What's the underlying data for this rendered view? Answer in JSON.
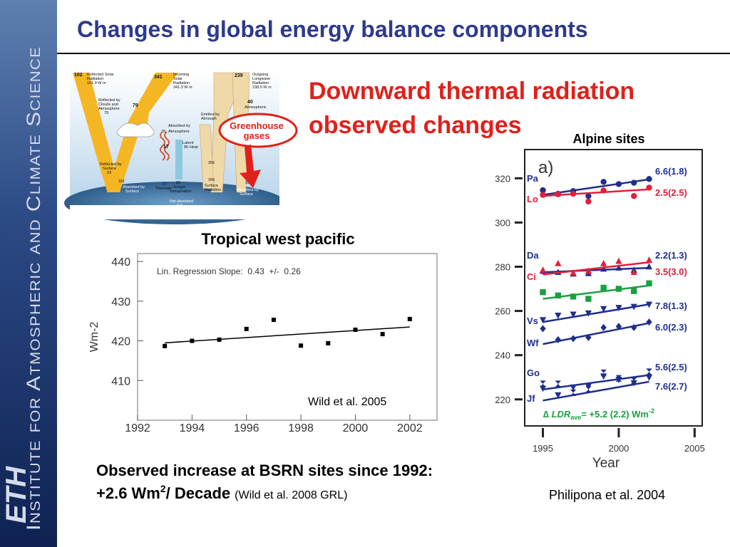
{
  "sidebar": {
    "institute": "Institute for Atmospheric and Climate Science",
    "logo": "ETH"
  },
  "title": "Changes in global energy balance components",
  "heading": [
    "Downward thermal radiation",
    "observed changes"
  ],
  "diagram": {
    "reflected_solar": [
      "102",
      "Reflected Solar",
      "Radiation",
      "101.9 W m"
    ],
    "incoming": [
      "341",
      "Incoming",
      "Solar",
      "Radiation",
      "341.3 W m"
    ],
    "outgoing": [
      "239",
      "Outgoing",
      "Longwave",
      "Radiation",
      "238.5 W m"
    ],
    "clouds": [
      "Reflected by",
      "Clouds and",
      "Atmosphere",
      "79"
    ],
    "n79": "79",
    "absorbed_atm": [
      "Absorbed by",
      "78",
      "Atmosphere"
    ],
    "emitted": [
      "Emitted by",
      "Atmosph"
    ],
    "window": [
      "40",
      "Atmospheric"
    ],
    "latent": [
      "Latent",
      "80",
      "Heat"
    ],
    "n17": "17",
    "refl_surface": [
      "Reflected by",
      "Surface",
      "23"
    ],
    "n161": "161",
    "thermals": [
      "17",
      "Thermals"
    ],
    "evapo": [
      "80",
      "Evapo-",
      "transpiration"
    ],
    "n356": "356",
    "surface_rad": [
      "396",
      "Surface",
      "Radiation"
    ],
    "n333": "333",
    "abs_surface_left": [
      "Absorbed by",
      "Surface"
    ],
    "abs_surface_right": [
      "Absorbed by",
      "Surface"
    ],
    "net": [
      "Net absorbed",
      "0.9",
      "W m"
    ],
    "callout": [
      "Greenhouse",
      "gases"
    ]
  },
  "summary": {
    "line1": "Observed increase at BSRN sites since 1992:",
    "line2": "+2.6 Wm",
    "sup": "2",
    "line2b": "/ Decade",
    "source": "(Wild et al. 2008 GRL)"
  },
  "chart_data": [
    {
      "type": "scatter",
      "title": "Tropical west pacific",
      "ylabel": "Wm-2",
      "annotation": "Lin. Regression Slope:  0.43  +/-  0.26",
      "source": "Wild et al. 2005",
      "x": [
        1993,
        1994,
        1995,
        1996,
        1997,
        1998,
        1999,
        2000,
        2001,
        2002
      ],
      "values": [
        418.7,
        420.0,
        420.3,
        423.0,
        425.3,
        418.8,
        419.4,
        422.8,
        421.7,
        425.5
      ],
      "color": "#000000",
      "marker": "square",
      "trend": {
        "x": [
          1993,
          2002
        ],
        "values": [
          419.5,
          423.5
        ]
      },
      "xlim": [
        1992,
        2003
      ],
      "xticks": [
        1992,
        1994,
        1996,
        1998,
        2000,
        2002
      ],
      "ylim": [
        400,
        442
      ],
      "yticks": [
        410,
        420,
        430,
        440
      ]
    },
    {
      "type": "scatter",
      "title": "Alpine sites",
      "panel": "a)",
      "xlabel": "Year",
      "source": "Philipona et al. 2004",
      "x": [
        1995,
        1996,
        1997,
        1998,
        1999,
        2000,
        2001,
        2002
      ],
      "trend_x": [
        1995,
        2002
      ],
      "xlim": [
        1993.8,
        2005.5
      ],
      "xticks": [
        1995,
        2000,
        2005
      ],
      "ylim": [
        208,
        333
      ],
      "yticks": [
        220,
        240,
        260,
        280,
        300,
        320
      ],
      "series": [
        {
          "name": "Pa",
          "note": "6.6(1.8)",
          "color": "#1f2f8f",
          "marker": "circle",
          "values": [
            314.6,
            313.0,
            314.2,
            312.0,
            318.4,
            317.4,
            318.0,
            319.7
          ],
          "trend": [
            312.5,
            319.5
          ]
        },
        {
          "name": "Lo",
          "note": "2.5(2.5)",
          "color": "#e0203a",
          "marker": "circle",
          "values": [
            312.5,
            312.8,
            313.0,
            309.5,
            314.5,
            null,
            312.0,
            315.8
          ],
          "trend": [
            312.0,
            315.0
          ]
        },
        {
          "name": "Da",
          "note": "2.2(1.3)",
          "color": "#1f2f8f",
          "marker": "triangle",
          "values": [
            278.0,
            277.5,
            276.8,
            277.0,
            279.0,
            279.5,
            278.5,
            280.0
          ],
          "trend": [
            277.5,
            279.5
          ]
        },
        {
          "name": "Ci",
          "note": "3.5(3.0)",
          "color": "#e0203a",
          "marker": "triangle",
          "values": [
            278.5,
            281.5,
            277.2,
            278.0,
            281.5,
            282.5,
            277.5,
            283.0
          ],
          "trend": [
            276.5,
            282.0
          ]
        },
        {
          "color": "#1aa040",
          "marker": "square",
          "values": [
            268.5,
            267.0,
            266.5,
            265.5,
            270.5,
            270.0,
            269.0,
            272.5
          ],
          "trend": [
            265.5,
            271.5
          ]
        },
        {
          "name": "Vs",
          "note": "7.8(1.3)",
          "color": "#1f2f8f",
          "marker": "invtriangle",
          "values": [
            256.0,
            258.0,
            258.5,
            259.0,
            261.0,
            261.5,
            262.0,
            263.0
          ],
          "trend": [
            255.0,
            263.0
          ]
        },
        {
          "name": "Wf",
          "note": "6.0(2.3)",
          "color": "#1f2f8f",
          "marker": "diamond",
          "values": [
            252.0,
            247.0,
            247.5,
            248.0,
            252.5,
            253.0,
            252.5,
            255.0
          ],
          "trend": [
            245.0,
            254.5
          ]
        },
        {
          "name": "Go",
          "note": "5.6(2.5)",
          "color": "#1f2f8f",
          "marker": "hourglass",
          "values": [
            227.0,
            227.0,
            223.0,
            224.5,
            232.0,
            229.5,
            228.5,
            232.5
          ],
          "trend": [
            224.5,
            231.0
          ]
        },
        {
          "name": "Jf",
          "note": "7.6(2.7)",
          "color": "#1f2f8f",
          "marker": "invtriangle",
          "values": [
            225.0,
            222.0,
            225.5,
            226.0,
            230.5,
            229.0,
            227.5,
            230.0
          ],
          "trend": [
            219.5,
            228.0
          ]
        }
      ],
      "average_label": [
        "∆ ",
        "LDR",
        "ave",
        "= +5.2 (2.2) Wm",
        "-2"
      ]
    }
  ]
}
